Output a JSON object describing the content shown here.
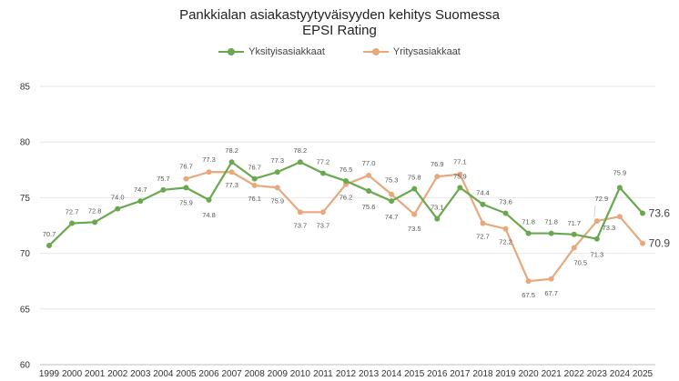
{
  "chart_data": {
    "type": "line",
    "title": "Pankkialan asiakastyytyväisyyden kehitys Suomessa",
    "subtitle": "EPSI Rating",
    "ylim": [
      60,
      85
    ],
    "yticks": [
      60,
      65,
      70,
      75,
      80,
      85
    ],
    "grid": "horizontal",
    "legend_position": "top-center",
    "categories": [
      "1999",
      "2000",
      "2001",
      "2002",
      "2003",
      "2004",
      "2005",
      "2006",
      "2007",
      "2008",
      "2009",
      "2010",
      "2011",
      "2012",
      "2013",
      "2014",
      "2015",
      "2016",
      "2017",
      "2018",
      "2019",
      "2020",
      "2021",
      "2022",
      "2023",
      "2024",
      "2025"
    ],
    "series": [
      {
        "name": "Yksityisasiakkaat",
        "color": "#6aa84f",
        "values": [
          70.7,
          72.7,
          72.8,
          74.0,
          74.7,
          75.7,
          75.9,
          74.8,
          78.2,
          76.7,
          77.3,
          78.2,
          77.2,
          76.5,
          75.6,
          74.7,
          75.8,
          73.1,
          75.9,
          74.4,
          73.6,
          71.8,
          71.8,
          71.7,
          71.3,
          75.9,
          73.6
        ],
        "labels": [
          "70.7",
          "72.7",
          "72.8",
          "74.0",
          "74.7",
          "75.7",
          "75.9",
          "74.8",
          "78.2",
          "76.7",
          "77.3",
          "78.2",
          "77.2",
          "76.5",
          "75.6",
          "74.7",
          "75.8",
          "73.1",
          "75.9",
          "74.4",
          "73.6",
          "71.8",
          "71.8",
          "71.7",
          "71.3",
          "75.9",
          "73.6"
        ]
      },
      {
        "name": "Yritysasiakkaat",
        "color": "#e8a87c",
        "values": [
          null,
          null,
          null,
          null,
          null,
          null,
          76.7,
          77.3,
          77.3,
          76.1,
          75.9,
          73.7,
          73.7,
          76.2,
          77.0,
          75.3,
          73.5,
          76.9,
          77.1,
          72.7,
          72.2,
          67.5,
          67.7,
          70.5,
          72.9,
          73.3,
          70.9
        ],
        "labels": [
          null,
          null,
          null,
          null,
          null,
          null,
          "76.7",
          "77.3",
          "77.3",
          "76.1",
          "75.9",
          "73.7",
          "73.7",
          "76.2",
          "77.0",
          "75.3",
          "73.5",
          "76.9",
          "77.1",
          "72.7",
          "72.2",
          "67.5",
          "67.7",
          "70.5",
          "72.9",
          "73.3",
          "70.9"
        ]
      }
    ]
  }
}
